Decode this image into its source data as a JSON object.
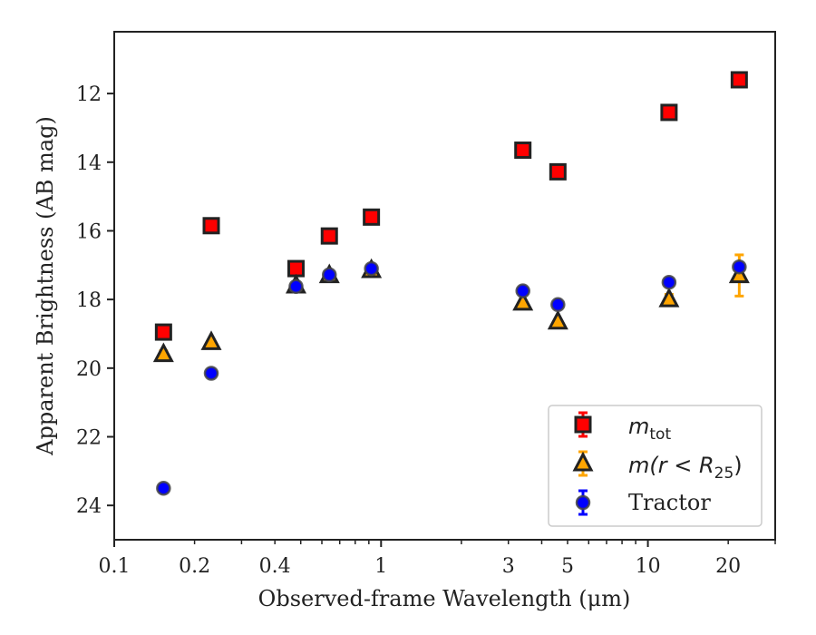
{
  "chart_data": {
    "type": "scatter",
    "xlabel": "Observed-frame Wavelength (μm)",
    "ylabel": "Apparent Brightness (AB mag)",
    "x_scale": "log",
    "xlim": [
      0.1,
      30
    ],
    "ylim": [
      25,
      10.2
    ],
    "y_inverted": true,
    "x_ticks": [
      {
        "value": 0.1,
        "label": "0.1"
      },
      {
        "value": 0.2,
        "label": "0.2"
      },
      {
        "value": 0.4,
        "label": "0.4"
      },
      {
        "value": 1,
        "label": "1"
      },
      {
        "value": 3,
        "label": "3"
      },
      {
        "value": 5,
        "label": "5"
      },
      {
        "value": 10,
        "label": "10"
      },
      {
        "value": 20,
        "label": "20"
      }
    ],
    "y_ticks": [
      {
        "value": 12,
        "label": "12"
      },
      {
        "value": 14,
        "label": "14"
      },
      {
        "value": 16,
        "label": "16"
      },
      {
        "value": 18,
        "label": "18"
      },
      {
        "value": 20,
        "label": "20"
      },
      {
        "value": 22,
        "label": "22"
      },
      {
        "value": 24,
        "label": "24"
      }
    ],
    "grid": false,
    "legend_position": "lower-right",
    "series": [
      {
        "name": "m_tot",
        "marker": "square",
        "color": "#ff0000",
        "errcolor": "#ff0000",
        "points": [
          {
            "x": 0.153,
            "y": 18.95,
            "err": 0.05
          },
          {
            "x": 0.231,
            "y": 15.85,
            "err": 0.05
          },
          {
            "x": 0.48,
            "y": 17.1,
            "err": 0.05
          },
          {
            "x": 0.64,
            "y": 16.15,
            "err": 0.05
          },
          {
            "x": 0.92,
            "y": 15.6,
            "err": 0.05
          },
          {
            "x": 3.4,
            "y": 13.65,
            "err": 0.05
          },
          {
            "x": 4.6,
            "y": 14.28,
            "err": 0.05
          },
          {
            "x": 12.0,
            "y": 12.55,
            "err": 0.05
          },
          {
            "x": 22.0,
            "y": 11.6,
            "err": 0.05
          }
        ]
      },
      {
        "name": "m(r<R25)",
        "marker": "triangle",
        "color": "#ffa500",
        "errcolor": "#ffa500",
        "points": [
          {
            "x": 0.153,
            "y": 19.6,
            "err": 0.1
          },
          {
            "x": 0.231,
            "y": 19.25,
            "err": 0.05
          },
          {
            "x": 0.48,
            "y": 17.6,
            "err": 0.05
          },
          {
            "x": 0.64,
            "y": 17.3,
            "err": 0.05
          },
          {
            "x": 0.92,
            "y": 17.15,
            "err": 0.05
          },
          {
            "x": 3.4,
            "y": 18.1,
            "err": 0.05
          },
          {
            "x": 4.6,
            "y": 18.65,
            "err": 0.05
          },
          {
            "x": 12.0,
            "y": 18.0,
            "err": 0.15
          },
          {
            "x": 22.0,
            "y": 17.3,
            "err": 0.6
          }
        ]
      },
      {
        "name": "Tractor",
        "marker": "circle",
        "color": "#0000ff",
        "errcolor": "#0000ff",
        "points": [
          {
            "x": 0.153,
            "y": 23.5,
            "err": 0.05
          },
          {
            "x": 0.231,
            "y": 20.15,
            "err": 0.05
          },
          {
            "x": 0.48,
            "y": 17.62,
            "err": 0.05
          },
          {
            "x": 0.64,
            "y": 17.28,
            "err": 0.05
          },
          {
            "x": 0.92,
            "y": 17.1,
            "err": 0.05
          },
          {
            "x": 3.4,
            "y": 17.75,
            "err": 0.05
          },
          {
            "x": 4.6,
            "y": 18.15,
            "err": 0.05
          },
          {
            "x": 12.0,
            "y": 17.5,
            "err": 0.05
          },
          {
            "x": 22.0,
            "y": 17.05,
            "err": 0.05
          }
        ]
      }
    ]
  },
  "legend": {
    "items": [
      {
        "symbol": "m",
        "subscript": "tot",
        "series": "m_tot"
      },
      {
        "math": "m(r < R",
        "subscript": "25",
        "closing": ")",
        "series": "m(r<R25)"
      },
      {
        "label": "Tractor",
        "series": "Tractor"
      }
    ]
  }
}
